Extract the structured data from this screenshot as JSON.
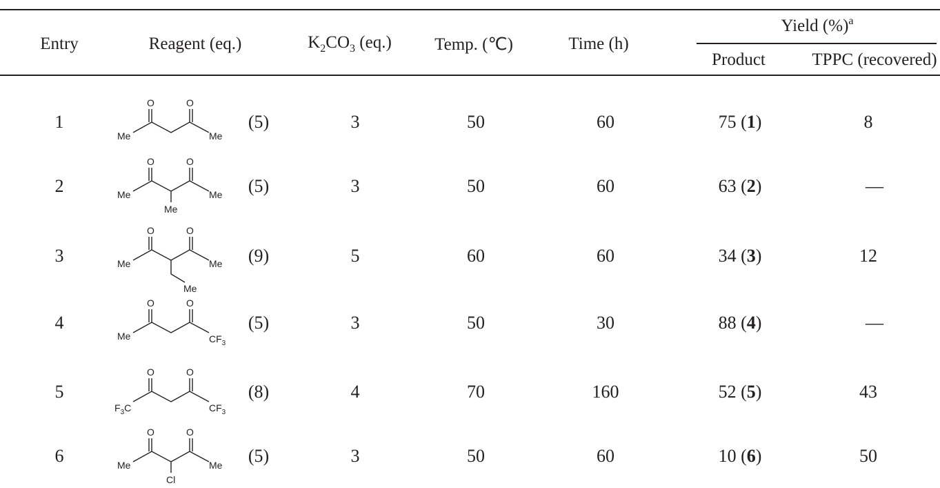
{
  "headers": {
    "entry": "Entry",
    "reagent": "Reagent (eq.)",
    "k2co3_main": "K",
    "k2co3_sub1": "2",
    "k2co3_mid": "CO",
    "k2co3_sub2": "3",
    "k2co3_tail": " (eq.)",
    "temp": "Temp. (℃)",
    "time": "Time (h)",
    "yield": "Yield (%)",
    "yield_sup": "a",
    "product": "Product",
    "tppc": "TPPC (recovered)"
  },
  "rows": [
    {
      "entry": "1",
      "eq": "(5)",
      "k2co3": "3",
      "temp": "50",
      "time": "60",
      "yield": "75",
      "product_id": "1",
      "tppc": "8",
      "labels": {
        "left": "Me",
        "right": "Me",
        "o1": "O",
        "o2": "O"
      }
    },
    {
      "entry": "2",
      "eq": "(5)",
      "k2co3": "3",
      "temp": "50",
      "time": "60",
      "yield": "63",
      "product_id": "2",
      "tppc": "—",
      "labels": {
        "left": "Me",
        "right": "Me",
        "o1": "O",
        "o2": "O",
        "sub": "Me"
      }
    },
    {
      "entry": "3",
      "eq": "(9)",
      "k2co3": "5",
      "temp": "60",
      "time": "60",
      "yield": "34",
      "product_id": "3",
      "tppc": "12",
      "labels": {
        "left": "Me",
        "right": "Me",
        "o1": "O",
        "o2": "O",
        "sub": "Me"
      }
    },
    {
      "entry": "4",
      "eq": "(5)",
      "k2co3": "3",
      "temp": "50",
      "time": "30",
      "yield": "88",
      "product_id": "4",
      "tppc": "—",
      "labels": {
        "left": "Me",
        "right_main": "CF",
        "right_sub": "3",
        "o1": "O",
        "o2": "O"
      }
    },
    {
      "entry": "5",
      "eq": "(8)",
      "k2co3": "4",
      "temp": "70",
      "time": "160",
      "yield": "52",
      "product_id": "5",
      "tppc": "43",
      "labels": {
        "left_a": "F",
        "left_sub": "3",
        "left_b": "C",
        "right_main": "CF",
        "right_sub": "3",
        "o1": "O",
        "o2": "O"
      }
    },
    {
      "entry": "6",
      "eq": "(5)",
      "k2co3": "3",
      "temp": "50",
      "time": "60",
      "yield": "10",
      "product_id": "6",
      "tppc": "50",
      "labels": {
        "left": "Me",
        "right": "Me",
        "o1": "O",
        "o2": "O",
        "sub": "Cl"
      }
    }
  ]
}
